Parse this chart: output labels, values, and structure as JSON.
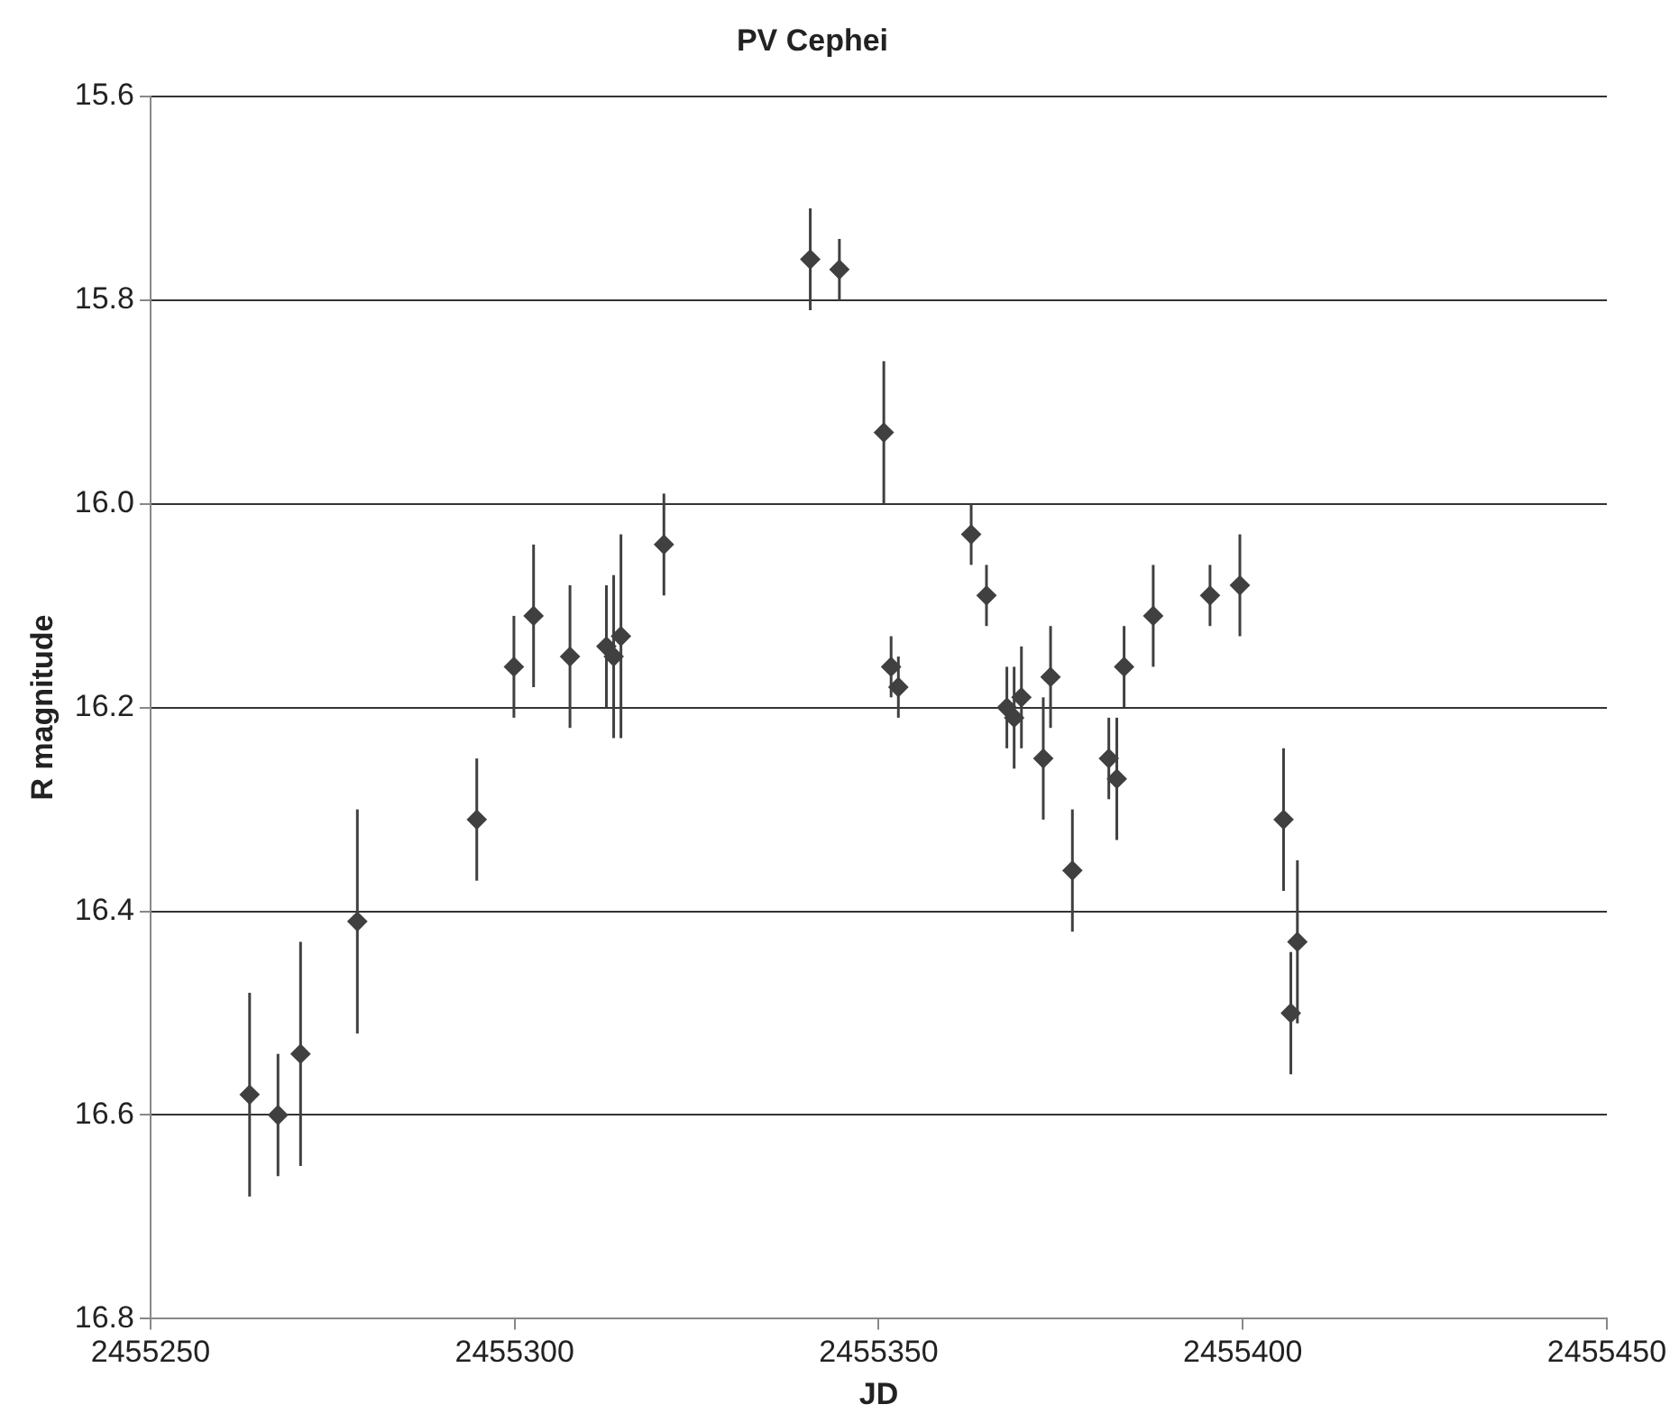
{
  "chart_data": {
    "type": "scatter",
    "title": "PV Cephei",
    "xlabel": "JD",
    "ylabel": "R magnitude",
    "x": [
      2455263.6,
      2455267.5,
      2455270.6,
      2455278.4,
      2455294.8,
      2455299.9,
      2455302.6,
      2455307.6,
      2455312.6,
      2455313.6,
      2455314.6,
      2455320.5,
      2455340.6,
      2455344.6,
      2455350.7,
      2455351.7,
      2455352.7,
      2455362.7,
      2455364.8,
      2455367.6,
      2455368.6,
      2455369.6,
      2455373.6,
      2455372.6,
      2455376.6,
      2455381.6,
      2455382.7,
      2455383.7,
      2455387.7,
      2455395.5,
      2455399.6,
      2455405.6,
      2455406.6,
      2455407.5
    ],
    "series": [
      {
        "color": "#404040",
        "values": [
          16.58,
          16.6,
          16.54,
          16.41,
          16.31,
          16.16,
          16.11,
          16.15,
          16.14,
          16.15,
          16.13,
          16.04,
          15.76,
          15.77,
          15.93,
          16.16,
          16.18,
          16.03,
          16.09,
          16.2,
          16.21,
          16.19,
          16.17,
          16.25,
          16.36,
          16.25,
          16.27,
          16.16,
          16.11,
          16.09,
          16.08,
          16.31,
          16.5,
          16.43
        ],
        "errors": [
          0.1,
          0.06,
          0.11,
          0.11,
          0.06,
          0.05,
          0.07,
          0.07,
          0.06,
          0.08,
          0.1,
          0.05,
          0.05,
          0.03,
          0.07,
          0.03,
          0.03,
          0.03,
          0.03,
          0.04,
          0.05,
          0.05,
          0.05,
          0.06,
          0.06,
          0.04,
          0.06,
          0.04,
          0.05,
          0.03,
          0.05,
          0.07,
          0.06,
          0.08
        ]
      }
    ],
    "xlim": [
      2455250,
      2455450
    ],
    "xticks": [
      2455250,
      2455300,
      2455350,
      2455400,
      2455450
    ],
    "ylim": [
      16.8,
      15.6
    ],
    "yticks": [
      15.6,
      15.8,
      {
        "value": 16,
        "label": "16.0"
      },
      16.2,
      16.4,
      16.6,
      16.8
    ],
    "grid": "y",
    "legend": false,
    "marker": "diamond"
  }
}
